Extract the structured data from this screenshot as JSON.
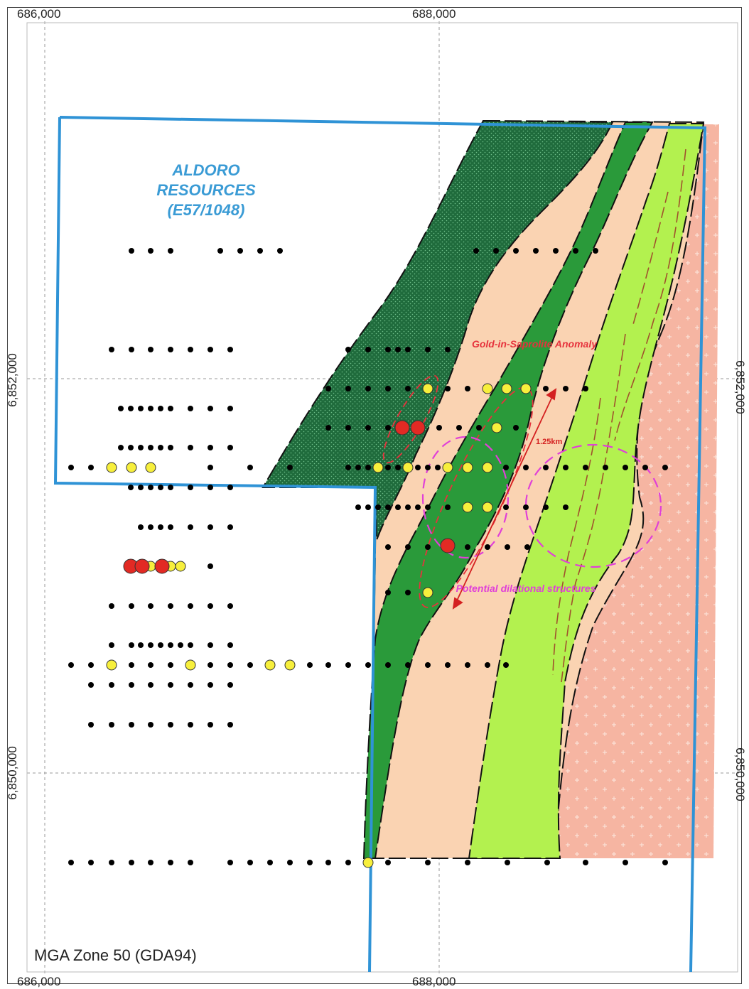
{
  "coordinates": {
    "easting_left": "686,000",
    "easting_mid": "688,000",
    "northing_upper": "6,852,000",
    "northing_lower": "6,850,000"
  },
  "map": {
    "projection_label": "MGA Zone 50 (GDA94)",
    "tenement": {
      "name_line1": "ALDORO",
      "name_line2": "RESOURCES",
      "name_line3": "(E57/1048)",
      "outline_color": "#2f93d6"
    },
    "annotations": {
      "anomaly": "Gold-in-Saprolite Anomaly",
      "dilational": "Potential dilational structures",
      "distance": "1.25km"
    },
    "colors": {
      "dark_green_stippled": "#1f6b3c",
      "green": "#2a9a3a",
      "light_green": "#b3f14f",
      "peach": "#fad3b2",
      "salmon": "#f6b5a2",
      "drillhole_black": "#000000",
      "drillhole_yellow": "#f7ef3c",
      "drillhole_red": "#e22a24",
      "anomaly_red": "#e6323c",
      "dilational_magenta": "#e040d8"
    }
  }
}
